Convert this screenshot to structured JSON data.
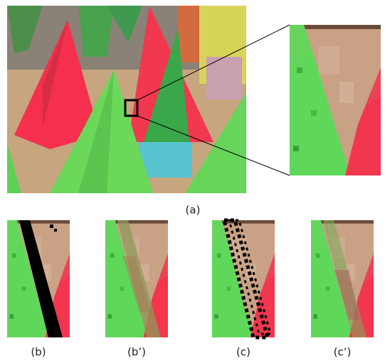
{
  "figure": {
    "labels": [
      "(a)",
      "(b)",
      "(b’)",
      "(c)",
      "(c’)"
    ]
  }
}
